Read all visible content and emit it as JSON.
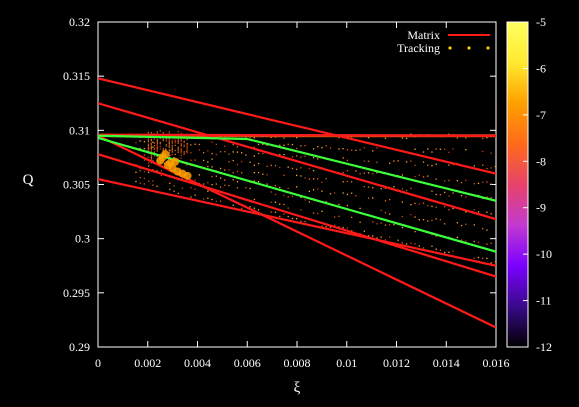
{
  "chart_data": {
    "type": "scatter",
    "xlabel": "ξ",
    "ylabel": "Q",
    "xlim": [
      0,
      0.016
    ],
    "ylim": [
      0.29,
      0.32
    ],
    "x_ticks": [
      "0",
      "0.002",
      "0.004",
      "0.006",
      "0.008",
      "0.01",
      "0.012",
      "0.014",
      "0.016"
    ],
    "y_ticks": [
      "0.29",
      "0.295",
      "0.3",
      "0.305",
      "0.31",
      "0.315",
      "0.32"
    ],
    "legend": {
      "position": "top-right",
      "entries": [
        {
          "label": "Matrix",
          "color": "#ff1a1a",
          "style": "line"
        },
        {
          "label": "Tracking",
          "color": "#ffcc00",
          "style": "dots"
        }
      ]
    },
    "colorbar": {
      "ticks": [
        "-5",
        "-6",
        "-7",
        "-8",
        "-9",
        "-10",
        "-11",
        "-12"
      ],
      "range": [
        -12,
        -5
      ],
      "colors": [
        "#000000",
        "#3a0a8a",
        "#7a00ff",
        "#c23ad0",
        "#e8426a",
        "#ff6a1a",
        "#ffa000",
        "#ffea30",
        "#ffff60"
      ]
    },
    "series": [
      {
        "name": "Matrix",
        "kind": "line",
        "color": "#ff1a1a",
        "x": [
          0,
          0.016
        ],
        "y": [
          0.3148,
          0.306
        ]
      },
      {
        "kind": "line",
        "color": "#ff1a1a",
        "x": [
          0,
          0.016
        ],
        "y": [
          0.3125,
          0.3018
        ]
      },
      {
        "kind": "line",
        "color": "#ff1a1a",
        "x": [
          0,
          0.016
        ],
        "y": [
          0.3096,
          0.3095
        ]
      },
      {
        "kind": "line",
        "color": "#ff1a1a",
        "x": [
          0,
          0.016
        ],
        "y": [
          0.3078,
          0.2965
        ]
      },
      {
        "kind": "line",
        "color": "#ff1a1a",
        "x": [
          0,
          0.016
        ],
        "y": [
          0.3055,
          0.2975
        ]
      },
      {
        "kind": "line",
        "color": "#ff1a1a",
        "x": [
          0,
          0.016
        ],
        "y": [
          0.3095,
          0.2918
        ]
      },
      {
        "kind": "line",
        "color": "#3aff3a",
        "x": [
          0,
          0.006,
          0.016
        ],
        "y": [
          0.3095,
          0.3092,
          0.3035
        ]
      },
      {
        "kind": "line",
        "color": "#3aff3a",
        "x": [
          0,
          0.016
        ],
        "y": [
          0.3093,
          0.2988
        ]
      },
      {
        "name": "Tracking",
        "kind": "dots",
        "color": "#ffa000",
        "x": [
          0.0025,
          0.0026,
          0.0027,
          0.0028,
          0.0029,
          0.003,
          0.0031,
          0.0032,
          0.0034,
          0.0036
        ],
        "y": [
          0.3072,
          0.3075,
          0.3078,
          0.3068,
          0.307,
          0.3065,
          0.3071,
          0.3062,
          0.306,
          0.3058
        ]
      }
    ]
  }
}
